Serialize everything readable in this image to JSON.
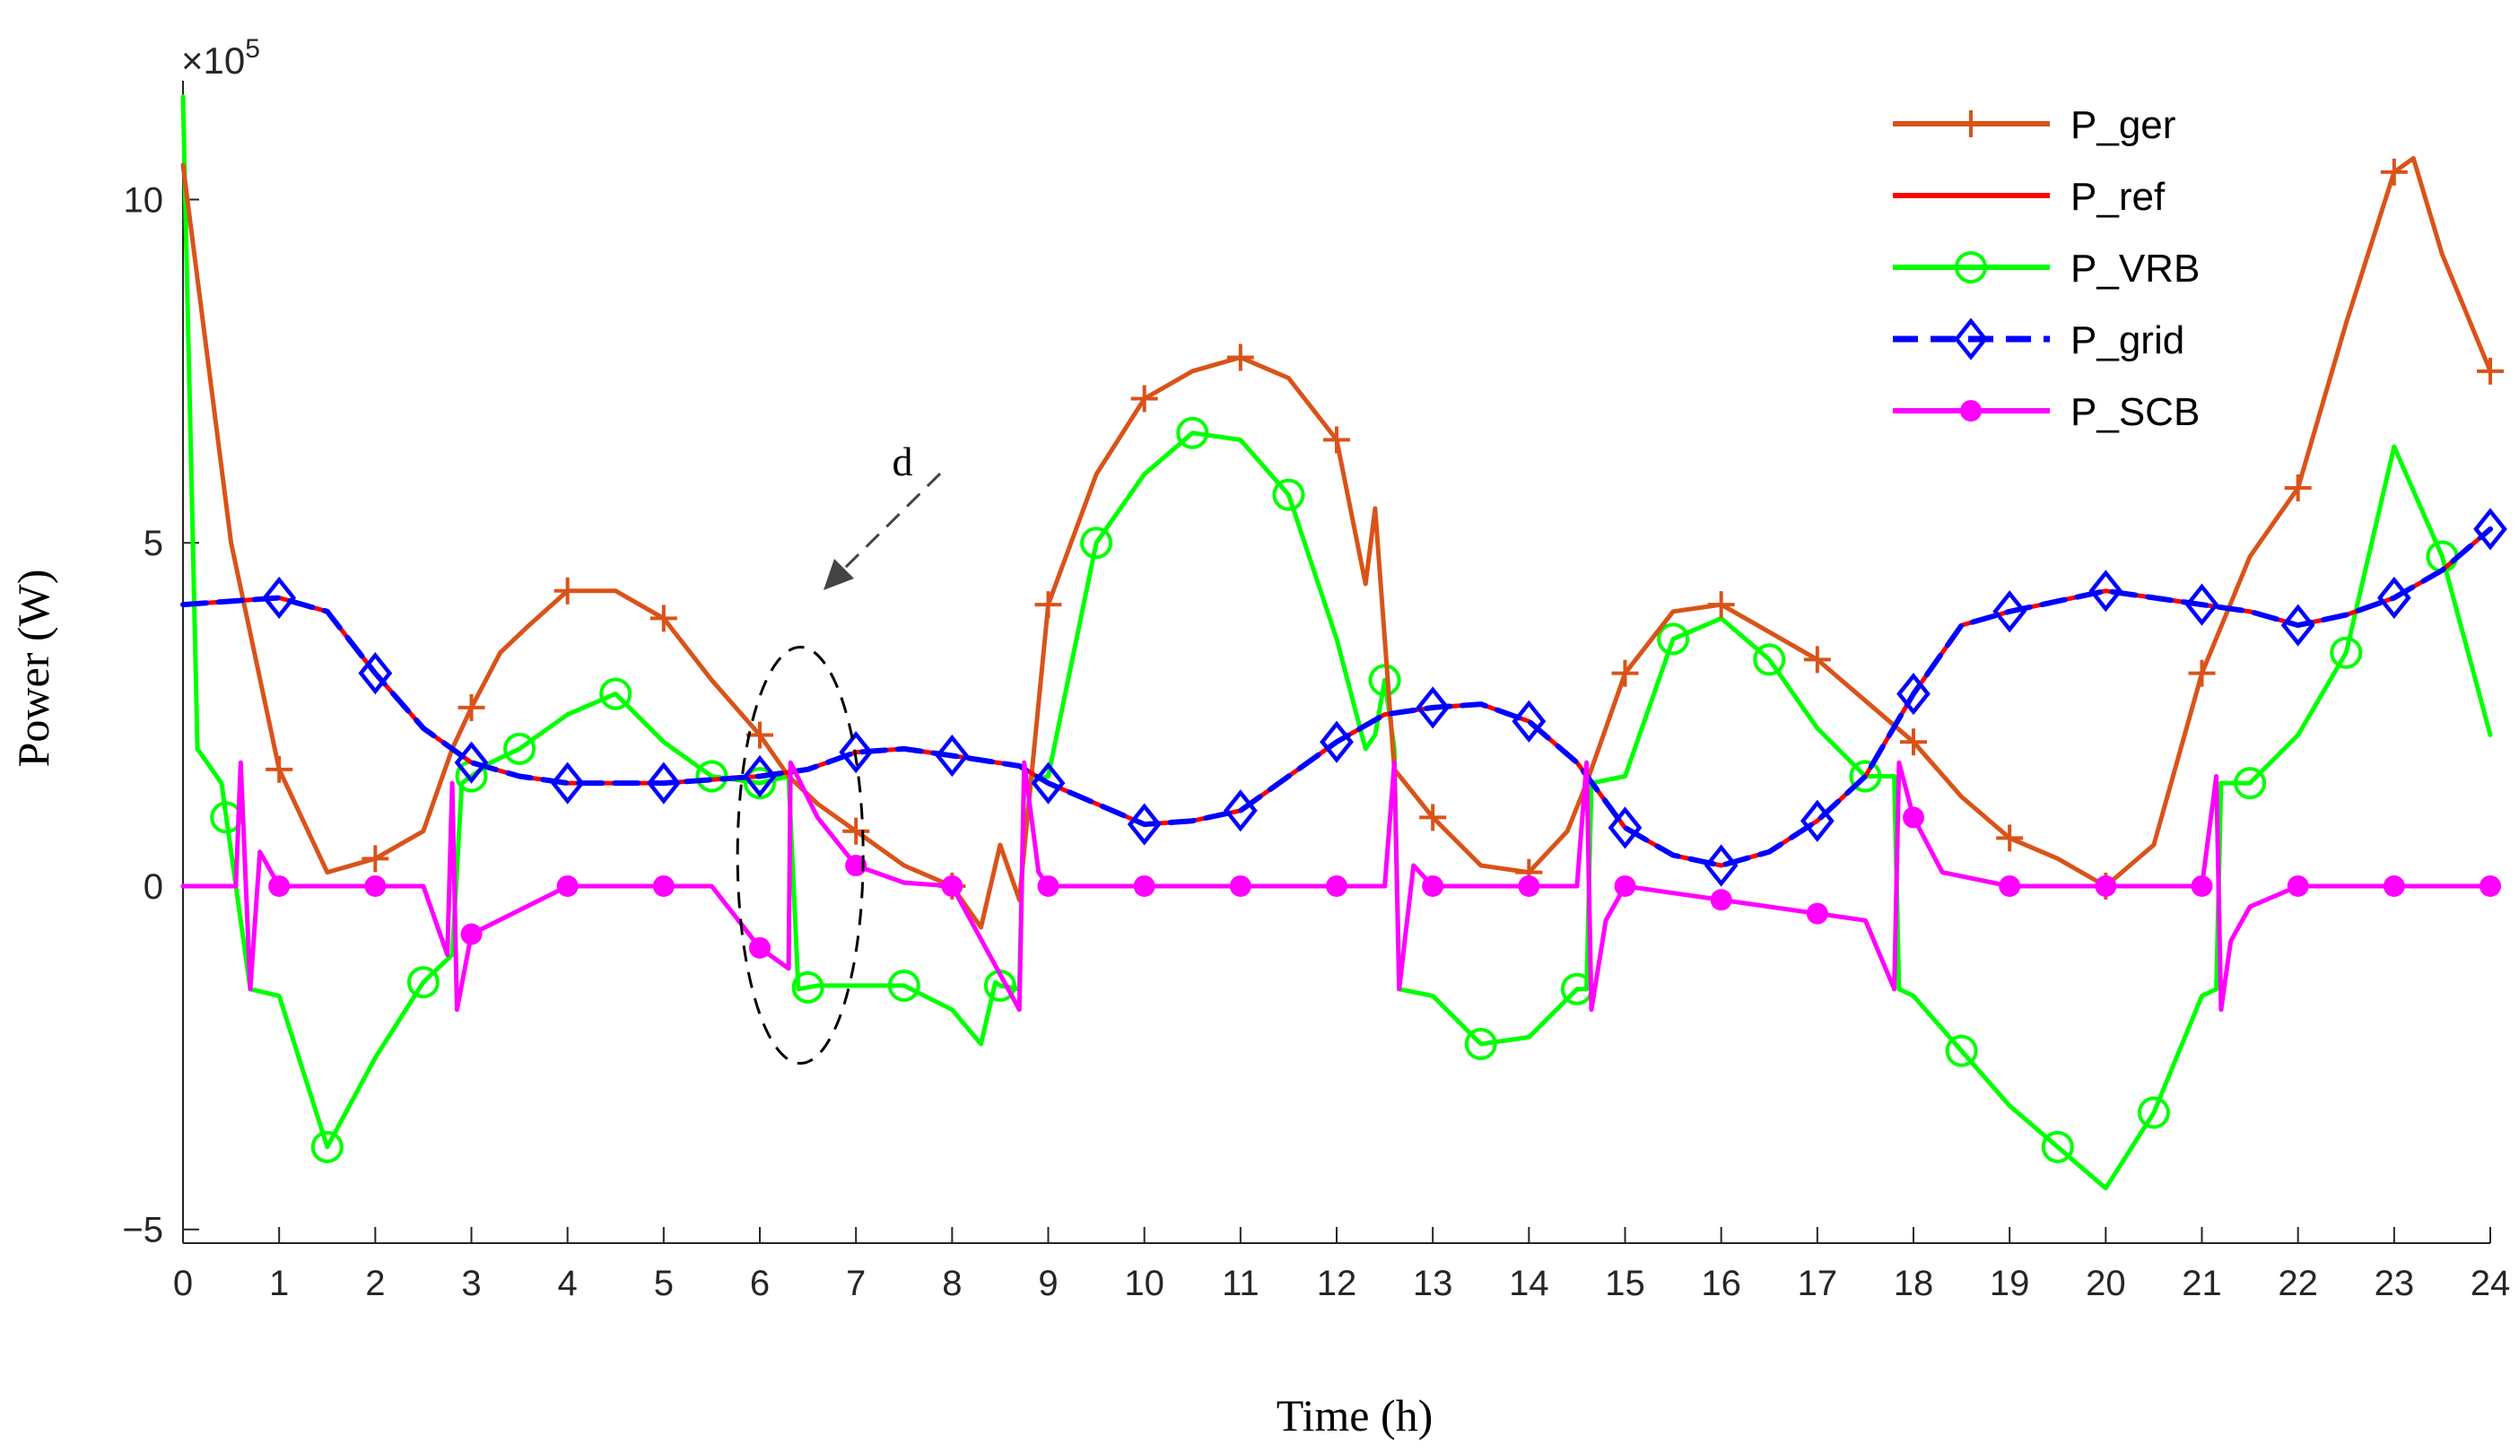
{
  "chart_data": {
    "type": "line",
    "title": "",
    "xlabel": "Time (h)",
    "ylabel": "Power (W)",
    "y_exponent_label": "×10",
    "y_exponent_power": "5",
    "xlim": [
      0,
      24
    ],
    "ylim": [
      -5.2,
      11.6
    ],
    "x_ticks": [
      0,
      1,
      2,
      3,
      4,
      5,
      6,
      7,
      8,
      9,
      10,
      11,
      12,
      13,
      14,
      15,
      16,
      17,
      18,
      19,
      20,
      21,
      22,
      23,
      24
    ],
    "x_tick_labels": [
      "0",
      "1",
      "2",
      "3",
      "4",
      "5",
      "6",
      "7",
      "8",
      "9",
      "10",
      "11",
      "12",
      "13",
      "14",
      "15",
      "16",
      "17",
      "18",
      "19",
      "20",
      "21",
      "22",
      "23",
      "24"
    ],
    "y_ticks": [
      -5,
      0,
      5,
      10
    ],
    "y_tick_labels": [
      "−5",
      "0",
      "5",
      "10"
    ],
    "legend_position": "top-right",
    "annotation": {
      "label": "d",
      "target_x": 7.0,
      "target_y": 0.45
    },
    "series": [
      {
        "name": "P_ger",
        "color": "#D95319",
        "marker": "plus",
        "dash": "solid",
        "x": [
          0,
          0.5,
          1,
          1.5,
          2,
          2.5,
          2.8,
          3,
          3.3,
          3.6,
          4,
          4.5,
          5,
          5.5,
          6,
          6.3,
          6.6,
          7,
          7.5,
          8,
          8.3,
          8.5,
          8.7,
          9,
          9.5,
          10,
          10.5,
          11,
          11.5,
          12,
          12.3,
          12.4,
          12.6,
          13,
          13.5,
          14,
          14.4,
          14.6,
          15,
          15.5,
          16,
          16.5,
          17,
          17.5,
          18,
          18.5,
          19,
          19.5,
          20,
          20.5,
          21,
          21.5,
          22,
          22.5,
          23,
          23.2,
          23.5,
          24
        ],
        "y": [
          10.5,
          5,
          1.7,
          0.2,
          0.4,
          0.8,
          2,
          2.6,
          3.4,
          3.8,
          4.3,
          4.3,
          3.9,
          3,
          2.2,
          1.6,
          1.2,
          0.8,
          0.3,
          0,
          -0.6,
          0.6,
          -0.2,
          4.1,
          6,
          7.1,
          7.5,
          7.7,
          7.4,
          6.5,
          4.4,
          5.5,
          1.7,
          1,
          0.3,
          0.2,
          0.8,
          1.5,
          3.1,
          4,
          4.1,
          3.7,
          3.3,
          2.7,
          2.1,
          1.3,
          0.7,
          0.4,
          0,
          0.6,
          3.1,
          4.8,
          5.8,
          8.2,
          10.4,
          10.6,
          9.2,
          7.5
        ],
        "marker_x": [
          1,
          2,
          3,
          4,
          5,
          6,
          7,
          8,
          9,
          10,
          11,
          12,
          13,
          14,
          15,
          16,
          17,
          18,
          19,
          20,
          21,
          22,
          23,
          24
        ]
      },
      {
        "name": "P_ref",
        "color": "#FF0000",
        "marker": "none",
        "dash": "solid",
        "x": [
          0,
          1,
          1.5,
          2,
          2.5,
          3,
          3.5,
          4,
          5,
          6,
          6.5,
          7,
          7.5,
          8,
          8.7,
          9,
          10,
          10.5,
          11,
          12,
          12.5,
          13,
          13.5,
          14,
          14.5,
          15,
          15.5,
          16,
          16.5,
          17,
          17.5,
          18,
          18.5,
          19,
          20,
          21,
          21.5,
          22,
          22.5,
          23,
          23.5,
          24
        ],
        "y": [
          4.1,
          4.2,
          4.0,
          3.1,
          2.3,
          1.8,
          1.6,
          1.5,
          1.5,
          1.6,
          1.7,
          1.95,
          2.0,
          1.9,
          1.75,
          1.5,
          0.9,
          0.95,
          1.1,
          2.1,
          2.5,
          2.6,
          2.65,
          2.4,
          1.8,
          0.85,
          0.45,
          0.3,
          0.5,
          0.95,
          1.6,
          2.8,
          3.8,
          4.0,
          4.3,
          4.1,
          4.0,
          3.8,
          3.95,
          4.2,
          4.6,
          5.2
        ],
        "marker_x": []
      },
      {
        "name": "P_VRB",
        "color": "#00FF00",
        "marker": "circle",
        "dash": "solid",
        "x": [
          0,
          0.15,
          0.4,
          0.7,
          1,
          1.5,
          2,
          2.5,
          2.8,
          2.9,
          3.2,
          3.5,
          4,
          4.5,
          5,
          5.5,
          6,
          6.3,
          6.4,
          6.6,
          7,
          7.5,
          8,
          8.3,
          8.45,
          8.5,
          8.7,
          8.75,
          9,
          9.5,
          10,
          10.5,
          11,
          11.5,
          12,
          12.3,
          12.4,
          12.5,
          12.6,
          12.65,
          13,
          13.5,
          14,
          14.5,
          14.6,
          14.65,
          15,
          15.5,
          16,
          16.5,
          17,
          17.5,
          17.8,
          17.85,
          18,
          18.5,
          19,
          19.5,
          20,
          20.5,
          21,
          21.15,
          21.2,
          21.5,
          22,
          22.5,
          23,
          23.5,
          24
        ],
        "y": [
          11.5,
          2,
          1.5,
          -1.5,
          -1.6,
          -3.8,
          -2.5,
          -1.4,
          -1.0,
          1.5,
          1.8,
          2.0,
          2.5,
          2.8,
          2.1,
          1.6,
          1.5,
          1.6,
          -1.5,
          -1.45,
          -1.45,
          -1.45,
          -1.8,
          -2.3,
          -1.4,
          -1.45,
          -1.5,
          1.5,
          1.6,
          5,
          6,
          6.6,
          6.5,
          5.7,
          3.6,
          2.0,
          2.2,
          3.0,
          2.0,
          -1.5,
          -1.6,
          -2.3,
          -2.2,
          -1.5,
          -1.5,
          1.5,
          1.6,
          3.6,
          3.9,
          3.3,
          2.3,
          1.6,
          1.6,
          -1.5,
          -1.6,
          -2.4,
          -3.2,
          -3.8,
          -4.4,
          -3.3,
          -1.6,
          -1.5,
          1.5,
          1.5,
          2.2,
          3.4,
          6.4,
          4.8,
          2.2
        ],
        "marker_x": [
          0.45,
          1.5,
          2.5,
          3,
          3.5,
          4.5,
          5.5,
          6,
          6.5,
          7.5,
          8.5,
          9.5,
          10.5,
          11.5,
          12.5,
          13.5,
          14.5,
          15.5,
          16.5,
          17.5,
          18.5,
          19.5,
          20.5,
          21.5,
          22.5,
          23.5
        ]
      },
      {
        "name": "P_grid",
        "color": "#0000FF",
        "marker": "diamond",
        "dash": "dashed",
        "x": [
          0,
          1,
          1.5,
          2,
          2.5,
          3,
          3.5,
          4,
          5,
          6,
          6.5,
          7,
          7.5,
          8,
          8.7,
          9,
          10,
          10.5,
          11,
          12,
          12.5,
          13,
          13.5,
          14,
          14.5,
          15,
          15.5,
          16,
          16.5,
          17,
          17.5,
          18,
          18.5,
          19,
          20,
          21,
          21.5,
          22,
          22.5,
          23,
          23.5,
          24
        ],
        "y": [
          4.1,
          4.2,
          4.0,
          3.1,
          2.3,
          1.8,
          1.6,
          1.5,
          1.5,
          1.6,
          1.7,
          1.95,
          2.0,
          1.9,
          1.75,
          1.5,
          0.9,
          0.95,
          1.1,
          2.1,
          2.5,
          2.6,
          2.65,
          2.4,
          1.8,
          0.85,
          0.45,
          0.3,
          0.5,
          0.95,
          1.6,
          2.8,
          3.8,
          4.0,
          4.3,
          4.1,
          4.0,
          3.8,
          3.95,
          4.2,
          4.6,
          5.2
        ],
        "marker_x": [
          1,
          2,
          3,
          4,
          5,
          6,
          7,
          8,
          9,
          10,
          11,
          12,
          13,
          14,
          15,
          16,
          17,
          18,
          19,
          20,
          21,
          22,
          23,
          24
        ]
      },
      {
        "name": "P_SCB",
        "color": "#FF00FF",
        "marker": "dot",
        "dash": "solid",
        "x": [
          0,
          0.55,
          0.6,
          0.7,
          0.8,
          1,
          2,
          2.5,
          2.75,
          2.8,
          2.85,
          3,
          4,
          5,
          5.5,
          6,
          6.3,
          6.32,
          6.6,
          7,
          7.5,
          8,
          8.7,
          8.75,
          8.9,
          9,
          12.5,
          12.6,
          12.65,
          12.8,
          13,
          14,
          14.5,
          14.6,
          14.65,
          14.8,
          15,
          17.5,
          17.8,
          17.85,
          18,
          18.3,
          19,
          20,
          21,
          21.15,
          21.2,
          21.3,
          21.5,
          22,
          24
        ],
        "y": [
          0,
          0,
          1.8,
          -1.5,
          0.5,
          0,
          0,
          0,
          -1,
          1.5,
          -1.8,
          -0.7,
          0,
          0,
          0,
          -0.9,
          -1.2,
          1.8,
          1.0,
          0.3,
          0.05,
          0,
          -1.8,
          1.8,
          0.2,
          0,
          0,
          1.8,
          -1.5,
          0.3,
          0,
          0,
          0,
          1.8,
          -1.8,
          -0.5,
          0,
          -0.5,
          -1.5,
          1.8,
          1.0,
          0.2,
          0,
          0,
          0,
          1.6,
          -1.8,
          -0.8,
          -0.3,
          0,
          0
        ],
        "marker_x": [
          1,
          2,
          3,
          4,
          5,
          6,
          7,
          8,
          9,
          10,
          11,
          12,
          13,
          14,
          15,
          16,
          17,
          18,
          19,
          20,
          21,
          22,
          23,
          24
        ]
      }
    ]
  }
}
